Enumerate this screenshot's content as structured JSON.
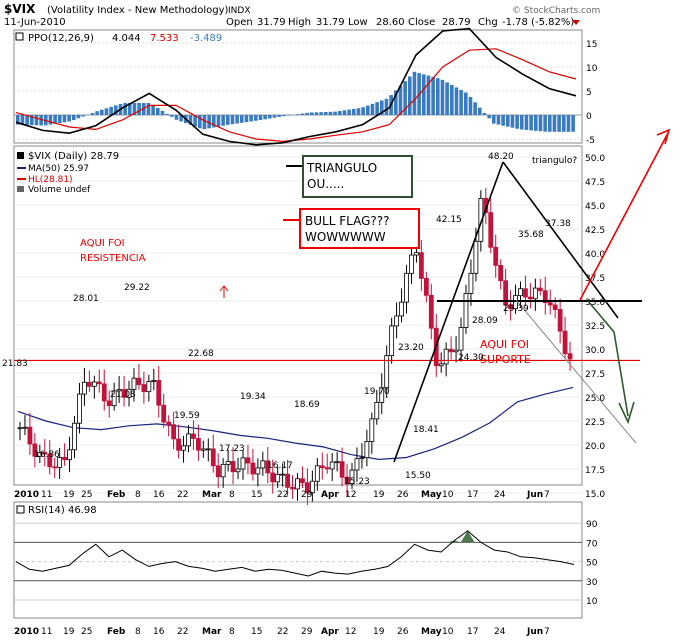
{
  "header": {
    "symbol": "$VIX",
    "name": "(Volatility Index - New Methodology)",
    "exchange": "INDX",
    "date": "11-Jun-2010",
    "open_label": "Open",
    "open": "31.79",
    "high_label": "High",
    "high": "31.79",
    "low_label": "Low",
    "low": "28.60",
    "close_label": "Close",
    "close": "28.79",
    "chg_label": "Chg",
    "chg": "-1.78 (-5.82%)",
    "copyright": "© StockCharts.com"
  },
  "ppo_panel": {
    "label": "PPO(12,26,9)",
    "v1": "4.044",
    "v2": "7.533",
    "v3": "-3.489",
    "ticks": [
      "15",
      "10",
      "5",
      "0",
      "-5"
    ],
    "chart_data": {
      "type": "line",
      "title": "PPO(12,26,9)",
      "ylim": [
        -7,
        20
      ],
      "series": [
        {
          "name": "PPO",
          "color": "#000000",
          "values": [
            -1.5,
            -3.2,
            -3.8,
            -2.2,
            1.5,
            4.5,
            1.0,
            -4.0,
            -5.5,
            -6.2,
            -5.8,
            -4.5,
            -3.5,
            -2.0,
            1.5,
            12.5,
            17.5,
            18.0,
            12.0,
            8.5,
            5.5,
            4.0
          ]
        },
        {
          "name": "Signal",
          "color": "#e00000",
          "values": [
            0.5,
            -1.0,
            -2.5,
            -3.0,
            -1.0,
            2.0,
            2.0,
            -1.0,
            -3.5,
            -5.0,
            -5.5,
            -5.0,
            -4.2,
            -3.5,
            -2.0,
            3.5,
            10.0,
            13.5,
            13.8,
            11.5,
            9.0,
            7.5
          ]
        },
        {
          "name": "Histogram",
          "color": "#3a7bbf",
          "values": [
            -2.0,
            -2.2,
            -1.3,
            0.8,
            2.5,
            2.5,
            -1.0,
            -3.0,
            -2.0,
            -1.2,
            -0.3,
            0.5,
            0.7,
            1.5,
            3.5,
            9.0,
            7.5,
            4.5,
            -1.8,
            -3.0,
            -3.5,
            -3.5
          ]
        }
      ]
    }
  },
  "price_panel": {
    "legend": {
      "symbol": "$VIX (Daily) 28.79",
      "ma": "MA(50) 25.97",
      "hl": "HL(28.81)",
      "volume": "Volume undef"
    },
    "ticks": [
      "50.0",
      "47.5",
      "45.0",
      "42.5",
      "40.0",
      "37.5",
      "35.0",
      "32.5",
      "30.0",
      "27.5",
      "25.0",
      "22.5",
      "20.0",
      "17.5",
      "15.0"
    ],
    "price_labels": [
      {
        "text": "21.83"
      },
      {
        "text": "16.86"
      },
      {
        "text": "28.01"
      },
      {
        "text": "29.22"
      },
      {
        "text": "21.08"
      },
      {
        "text": "22.68"
      },
      {
        "text": "19.59"
      },
      {
        "text": "17.23"
      },
      {
        "text": "19.34"
      },
      {
        "text": "16.17"
      },
      {
        "text": "18.69"
      },
      {
        "text": "15.23"
      },
      {
        "text": "19.70"
      },
      {
        "text": "15.50"
      },
      {
        "text": "18.41"
      },
      {
        "text": "23.20"
      },
      {
        "text": "42.15"
      },
      {
        "text": "24.30"
      },
      {
        "text": "28.09"
      },
      {
        "text": "48.20"
      },
      {
        "text": "29.39"
      },
      {
        "text": "35.68"
      },
      {
        "text": "37.38"
      }
    ],
    "annotations": {
      "triangulo_box_line1": "TRIANGULO",
      "triangulo_box_line2": "OU.....",
      "bull_flag_line1": "BULL FLAG???",
      "bull_flag_line2": "WOWWWWW",
      "resistencia_line1": "AQUI FOI",
      "resistencia_line2": "RESISTENCIA",
      "suporte_line1": "AQUI FOI",
      "suporte_line2": "SUPORTE",
      "triangulo_q": "triangulo?"
    },
    "chart_data": {
      "type": "line",
      "title": "$VIX (Daily)",
      "ylim": [
        14,
        50
      ],
      "horizontal_line": 28.81,
      "close_approx": [
        {
          "date": "2010-01-04",
          "close": 21.8
        },
        {
          "date": "2010-01-12",
          "close": 18.5
        },
        {
          "date": "2010-01-15",
          "close": 17.9
        },
        {
          "date": "2010-01-22",
          "close": 27.3
        },
        {
          "date": "2010-02-01",
          "close": 24.6
        },
        {
          "date": "2010-02-05",
          "close": 26.1
        },
        {
          "date": "2010-02-09",
          "close": 26.5
        },
        {
          "date": "2010-02-18",
          "close": 20.0
        },
        {
          "date": "2010-02-25",
          "close": 20.6
        },
        {
          "date": "2010-03-05",
          "close": 17.4
        },
        {
          "date": "2010-03-15",
          "close": 18.0
        },
        {
          "date": "2010-03-26",
          "close": 17.6
        },
        {
          "date": "2010-04-05",
          "close": 16.2
        },
        {
          "date": "2010-04-12",
          "close": 15.6
        },
        {
          "date": "2010-04-16",
          "close": 18.4
        },
        {
          "date": "2010-04-23",
          "close": 16.3
        },
        {
          "date": "2010-04-30",
          "close": 22.0
        },
        {
          "date": "2010-05-06",
          "close": 32.8
        },
        {
          "date": "2010-05-07",
          "close": 40.9
        },
        {
          "date": "2010-05-10",
          "close": 28.0
        },
        {
          "date": "2010-05-14",
          "close": 31.2
        },
        {
          "date": "2010-05-20",
          "close": 45.8
        },
        {
          "date": "2010-05-25",
          "close": 34.6
        },
        {
          "date": "2010-06-01",
          "close": 35.9
        },
        {
          "date": "2010-06-04",
          "close": 35.5
        },
        {
          "date": "2010-06-11",
          "close": 28.8
        }
      ]
    }
  },
  "rsi_panel": {
    "label": "RSI(14) 46.98",
    "ticks": [
      "90",
      "70",
      "50",
      "30",
      "10"
    ],
    "chart_data": {
      "type": "line",
      "title": "RSI(14)",
      "ylim": [
        0,
        100
      ],
      "levels": [
        70,
        30
      ],
      "values": [
        50,
        42,
        40,
        43,
        46,
        58,
        68,
        55,
        62,
        52,
        45,
        48,
        50,
        45,
        43,
        40,
        42,
        44,
        40,
        42,
        41,
        38,
        35,
        40,
        38,
        37,
        40,
        42,
        45,
        55,
        68,
        62,
        60,
        72,
        82,
        70,
        62,
        60,
        55,
        54,
        52,
        50,
        47
      ]
    }
  },
  "x_axis": [
    "2010",
    "11",
    "19",
    "25",
    "Feb",
    "8",
    "16",
    "22",
    "Mar",
    "8",
    "15",
    "22",
    "29",
    "Apr",
    "12",
    "19",
    "26",
    "May",
    "10",
    "17",
    "24",
    "Jun",
    "7"
  ]
}
